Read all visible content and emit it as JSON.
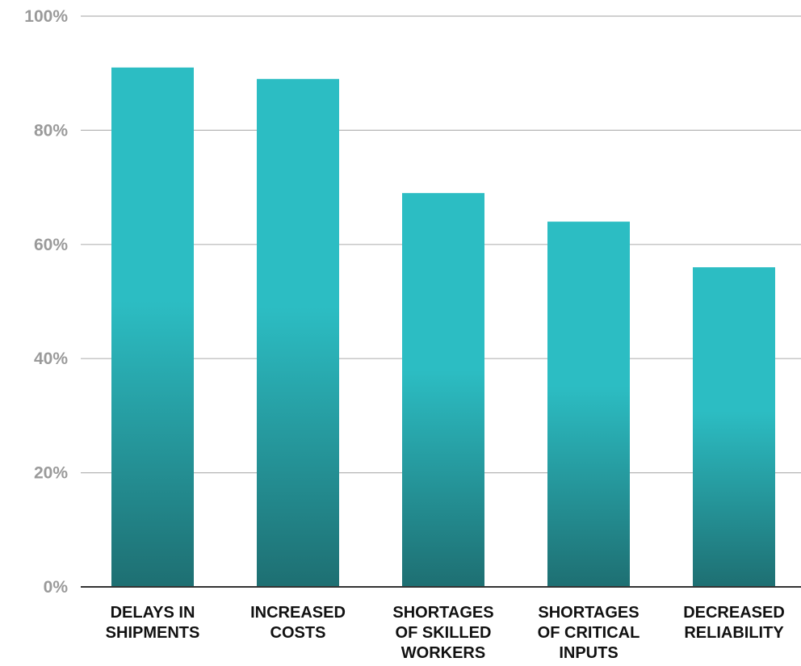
{
  "chart_data": {
    "type": "bar",
    "categories": [
      [
        "DELAYS IN",
        "SHIPMENTS"
      ],
      [
        "INCREASED",
        "COSTS"
      ],
      [
        "SHORTAGES",
        "OF SKILLED",
        "WORKERS"
      ],
      [
        "SHORTAGES",
        "OF CRITICAL",
        "INPUTS"
      ],
      [
        "DECREASED",
        "RELIABILITY"
      ]
    ],
    "values": [
      91,
      89,
      69,
      64,
      56
    ],
    "ylim": [
      0,
      100
    ],
    "yticks": [
      "0%",
      "20%",
      "40%",
      "60%",
      "80%",
      "100%"
    ],
    "grid": true,
    "title": "",
    "xlabel": "",
    "ylabel": "",
    "colors": {
      "bar_top": "#2cbdc3",
      "bar_bottom": "#1e6f72",
      "gridline": "#b5b5b5",
      "baseline": "#333333",
      "ytick": "#9a9a9a",
      "xtick": "#111111"
    }
  }
}
